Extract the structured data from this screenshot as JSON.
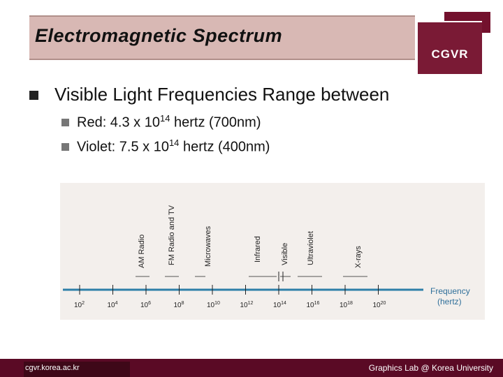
{
  "slide": {
    "title": "Electromagnetic Spectrum",
    "logo": "CGVR",
    "main_bullet": "Visible Light Frequencies Range between",
    "sub_bullets": [
      {
        "prefix": "Red: 4.3 x 10",
        "exponent": "14",
        "suffix": " hertz (700nm)"
      },
      {
        "prefix": "Violet: 7.5 x 10",
        "exponent": "14",
        "suffix": " hertz (400nm)"
      }
    ],
    "footer_left": "cgvr.korea.ac.kr",
    "footer_right": "Graphics Lab @ Korea University"
  },
  "figure": {
    "band_labels": [
      "AM Radio",
      "FM Radio and TV",
      "Microwaves",
      "Infrared",
      "Visible",
      "Ultraviolet",
      "X-rays"
    ],
    "tick_labels": [
      {
        "base": "10",
        "exp": "2"
      },
      {
        "base": "10",
        "exp": "4"
      },
      {
        "base": "10",
        "exp": "6"
      },
      {
        "base": "10",
        "exp": "8"
      },
      {
        "base": "10",
        "exp": "10"
      },
      {
        "base": "10",
        "exp": "12"
      },
      {
        "base": "10",
        "exp": "14"
      },
      {
        "base": "10",
        "exp": "16"
      },
      {
        "base": "10",
        "exp": "18"
      },
      {
        "base": "10",
        "exp": "20"
      }
    ],
    "axis_label_line1": "Frequency",
    "axis_label_line2": "(hertz)",
    "axis_color": "#2e7fa8",
    "axis_label_color": "#2f6f9a"
  }
}
